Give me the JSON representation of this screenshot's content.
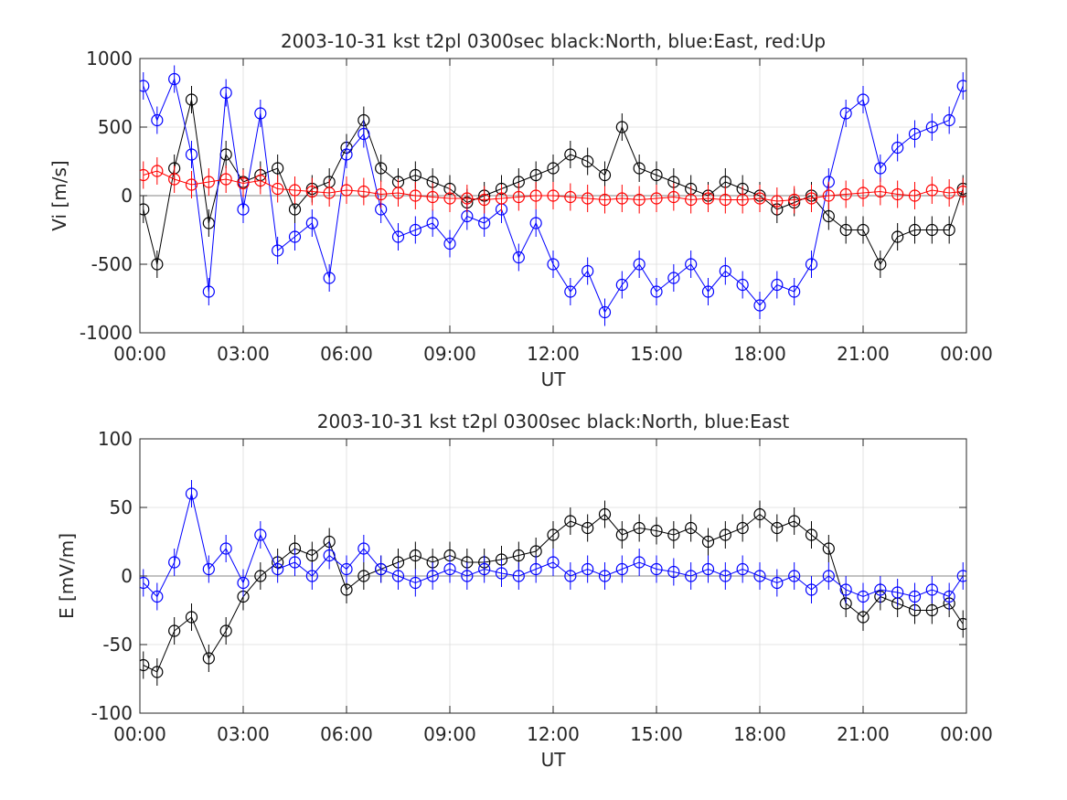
{
  "colors": {
    "north": "#000000",
    "east": "#0000ff",
    "up": "#ff0000",
    "axis": "#262626",
    "grid": "#dcdcdc"
  },
  "chart_data": [
    {
      "type": "line",
      "title": "2003-10-31 kst t2pl 0300sec black:North, blue:East, red:Up",
      "xlabel": "UT",
      "ylabel": "Vi [m/s]",
      "xlim": [
        0,
        24
      ],
      "ylim": [
        -1000,
        1000
      ],
      "x_ticks": [
        0,
        3,
        6,
        9,
        12,
        15,
        18,
        21,
        24
      ],
      "x_tick_labels": [
        "00:00",
        "03:00",
        "06:00",
        "09:00",
        "12:00",
        "15:00",
        "18:00",
        "21:00",
        "00:00"
      ],
      "y_ticks": [
        -1000,
        -500,
        0,
        500,
        1000
      ],
      "y_tick_labels": [
        "-1000",
        "-500",
        "0",
        "500",
        "1000"
      ],
      "grid": true,
      "marker": "circle",
      "errorbars": true,
      "series": [
        {
          "name": "North",
          "color": "#000000",
          "x": [
            0.1,
            0.5,
            1.0,
            1.5,
            2.0,
            2.5,
            3.0,
            3.5,
            4.0,
            4.5,
            5.0,
            5.5,
            6.0,
            6.5,
            7.0,
            7.5,
            8.0,
            8.5,
            9.0,
            9.5,
            10.0,
            10.5,
            11.0,
            11.5,
            12.0,
            12.5,
            13.0,
            13.5,
            14.0,
            14.5,
            15.0,
            15.5,
            16.0,
            16.5,
            17.0,
            17.5,
            18.0,
            18.5,
            19.0,
            19.5,
            20.0,
            20.5,
            21.0,
            21.5,
            22.0,
            22.5,
            23.0,
            23.5,
            23.9
          ],
          "y": [
            -100,
            -500,
            200,
            700,
            -200,
            300,
            100,
            150,
            200,
            -100,
            50,
            100,
            350,
            550,
            200,
            100,
            150,
            100,
            50,
            -50,
            0,
            50,
            100,
            150,
            200,
            300,
            250,
            150,
            500,
            200,
            150,
            100,
            50,
            0,
            100,
            50,
            0,
            -100,
            -50,
            0,
            -150,
            -250,
            -250,
            -500,
            -300,
            -250,
            -250,
            -250,
            50
          ]
        },
        {
          "name": "East",
          "color": "#0000ff",
          "x": [
            0.1,
            0.5,
            1.0,
            1.5,
            2.0,
            2.5,
            3.0,
            3.5,
            4.0,
            4.5,
            5.0,
            5.5,
            6.0,
            6.5,
            7.0,
            7.5,
            8.0,
            8.5,
            9.0,
            9.5,
            10.0,
            10.5,
            11.0,
            11.5,
            12.0,
            12.5,
            13.0,
            13.5,
            14.0,
            14.5,
            15.0,
            15.5,
            16.0,
            16.5,
            17.0,
            17.5,
            18.0,
            18.5,
            19.0,
            19.5,
            20.0,
            20.5,
            21.0,
            21.5,
            22.0,
            22.5,
            23.0,
            23.5,
            23.9
          ],
          "y": [
            800,
            550,
            850,
            300,
            -700,
            750,
            -100,
            600,
            -400,
            -300,
            -200,
            -600,
            300,
            450,
            -100,
            -300,
            -250,
            -200,
            -350,
            -150,
            -200,
            -100,
            -450,
            -200,
            -500,
            -700,
            -550,
            -850,
            -650,
            -500,
            -700,
            -600,
            -500,
            -700,
            -550,
            -650,
            -800,
            -650,
            -700,
            -500,
            100,
            600,
            700,
            200,
            350,
            450,
            500,
            550,
            800
          ]
        },
        {
          "name": "Up",
          "color": "#ff0000",
          "x": [
            0.1,
            0.5,
            1.0,
            1.5,
            2.0,
            2.5,
            3.0,
            3.5,
            4.0,
            4.5,
            5.0,
            5.5,
            6.0,
            6.5,
            7.0,
            7.5,
            8.0,
            8.5,
            9.0,
            9.5,
            10.0,
            10.5,
            11.0,
            11.5,
            12.0,
            12.5,
            13.0,
            13.5,
            14.0,
            14.5,
            15.0,
            15.5,
            16.0,
            16.5,
            17.0,
            17.5,
            18.0,
            18.5,
            19.0,
            19.5,
            20.0,
            20.5,
            21.0,
            21.5,
            22.0,
            22.5,
            23.0,
            23.5,
            23.9
          ],
          "y": [
            150,
            180,
            120,
            80,
            100,
            120,
            90,
            110,
            50,
            40,
            30,
            20,
            40,
            30,
            10,
            20,
            0,
            -10,
            -20,
            -20,
            -30,
            -20,
            -10,
            0,
            0,
            -10,
            -20,
            -30,
            -20,
            -30,
            -20,
            -10,
            -30,
            -20,
            -30,
            -30,
            -20,
            -40,
            -30,
            -20,
            0,
            10,
            20,
            30,
            10,
            0,
            40,
            20,
            30
          ]
        }
      ]
    },
    {
      "type": "line",
      "title": "2003-10-31 kst t2pl 0300sec black:North, blue:East",
      "xlabel": "UT",
      "ylabel": "E [mV/m]",
      "xlim": [
        0,
        24
      ],
      "ylim": [
        -100,
        100
      ],
      "x_ticks": [
        0,
        3,
        6,
        9,
        12,
        15,
        18,
        21,
        24
      ],
      "x_tick_labels": [
        "00:00",
        "03:00",
        "06:00",
        "09:00",
        "12:00",
        "15:00",
        "18:00",
        "21:00",
        "00:00"
      ],
      "y_ticks": [
        -100,
        -50,
        0,
        50,
        100
      ],
      "y_tick_labels": [
        "-100",
        "-50",
        "0",
        "50",
        "100"
      ],
      "grid": true,
      "marker": "circle",
      "errorbars": true,
      "series": [
        {
          "name": "North",
          "color": "#000000",
          "x": [
            0.1,
            0.5,
            1.0,
            1.5,
            2.0,
            2.5,
            3.0,
            3.5,
            4.0,
            4.5,
            5.0,
            5.5,
            6.0,
            6.5,
            7.0,
            7.5,
            8.0,
            8.5,
            9.0,
            9.5,
            10.0,
            10.5,
            11.0,
            11.5,
            12.0,
            12.5,
            13.0,
            13.5,
            14.0,
            14.5,
            15.0,
            15.5,
            16.0,
            16.5,
            17.0,
            17.5,
            18.0,
            18.5,
            19.0,
            19.5,
            20.0,
            20.5,
            21.0,
            21.5,
            22.0,
            22.5,
            23.0,
            23.5,
            23.9
          ],
          "y": [
            -65,
            -70,
            -40,
            -30,
            -60,
            -40,
            -15,
            0,
            10,
            20,
            15,
            25,
            -10,
            0,
            5,
            10,
            15,
            10,
            15,
            10,
            10,
            12,
            15,
            18,
            30,
            40,
            35,
            45,
            30,
            35,
            33,
            30,
            35,
            25,
            30,
            35,
            45,
            35,
            40,
            30,
            20,
            -20,
            -30,
            -15,
            -20,
            -25,
            -25,
            -20,
            -35
          ]
        },
        {
          "name": "East",
          "color": "#0000ff",
          "x": [
            0.1,
            0.5,
            1.0,
            1.5,
            2.0,
            2.5,
            3.0,
            3.5,
            4.0,
            4.5,
            5.0,
            5.5,
            6.0,
            6.5,
            7.0,
            7.5,
            8.0,
            8.5,
            9.0,
            9.5,
            10.0,
            10.5,
            11.0,
            11.5,
            12.0,
            12.5,
            13.0,
            13.5,
            14.0,
            14.5,
            15.0,
            15.5,
            16.0,
            16.5,
            17.0,
            17.5,
            18.0,
            18.5,
            19.0,
            19.5,
            20.0,
            20.5,
            21.0,
            21.5,
            22.0,
            22.5,
            23.0,
            23.5,
            23.9
          ],
          "y": [
            -5,
            -15,
            10,
            60,
            5,
            20,
            -5,
            30,
            5,
            10,
            0,
            15,
            5,
            20,
            5,
            0,
            -5,
            0,
            5,
            0,
            5,
            2,
            0,
            5,
            10,
            0,
            5,
            0,
            5,
            10,
            5,
            3,
            0,
            5,
            0,
            5,
            0,
            -5,
            0,
            -10,
            0,
            -10,
            -15,
            -10,
            -12,
            -15,
            -10,
            -15,
            0
          ]
        }
      ]
    }
  ]
}
